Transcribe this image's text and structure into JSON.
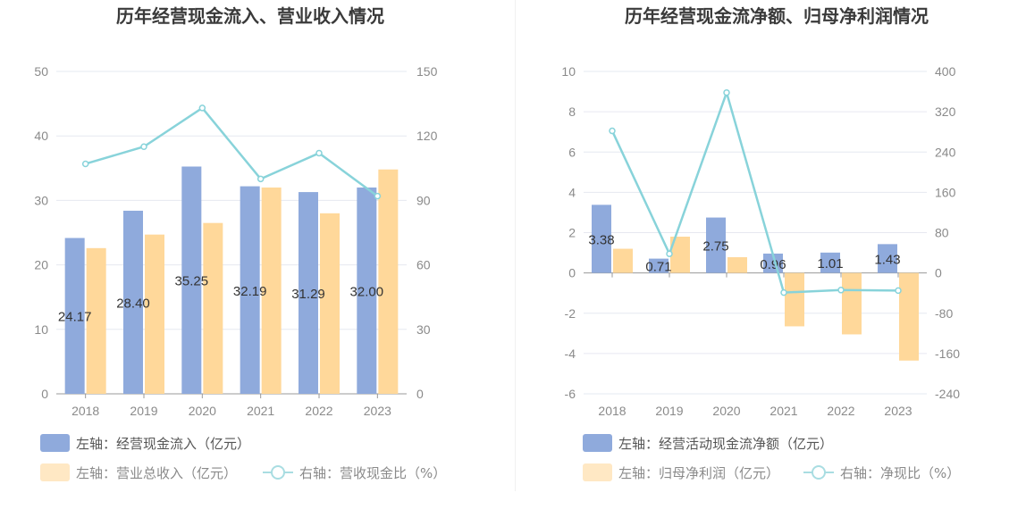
{
  "chart_data": [
    {
      "type": "bar",
      "title": "历年经营现金流入、营业收入情况",
      "categories": [
        "2018",
        "2019",
        "2020",
        "2021",
        "2022",
        "2023"
      ],
      "left_axis": {
        "ticks": [
          "0",
          "10",
          "20",
          "30",
          "40",
          "50"
        ],
        "ylim": [
          0,
          50
        ]
      },
      "right_axis": {
        "ticks": [
          "0",
          "30",
          "60",
          "90",
          "120",
          "150"
        ],
        "ylim": [
          0,
          150
        ]
      },
      "series": [
        {
          "name": "左轴：经营现金流入（亿元）",
          "type": "bar",
          "axis": "left",
          "color": "#8faadc",
          "values": [
            24.17,
            28.4,
            35.25,
            32.19,
            31.29,
            32.0
          ],
          "labels": [
            "24.17",
            "28.40",
            "35.25",
            "32.19",
            "31.29",
            "32.00"
          ]
        },
        {
          "name": "左轴：营业总收入（亿元）",
          "type": "bar",
          "axis": "left",
          "color": "#ffd89a",
          "values": [
            22.6,
            24.7,
            26.5,
            32.0,
            28.0,
            34.8
          ]
        },
        {
          "name": "右轴：营收现金比（%）",
          "type": "line",
          "axis": "right",
          "color": "#88d3da",
          "values": [
            107,
            115,
            133,
            100,
            112,
            92
          ]
        }
      ],
      "grid": true,
      "legend_position": "bottom-left"
    },
    {
      "type": "bar",
      "title": "历年经营现金流净额、归母净利润情况",
      "categories": [
        "2018",
        "2019",
        "2020",
        "2021",
        "2022",
        "2023"
      ],
      "left_axis": {
        "ticks": [
          "-6",
          "-4",
          "-2",
          "0",
          "2",
          "4",
          "6",
          "8",
          "10"
        ],
        "ylim": [
          -6,
          10
        ]
      },
      "right_axis": {
        "ticks": [
          "-240",
          "-160",
          "-80",
          "0",
          "80",
          "160",
          "240",
          "320",
          "400"
        ],
        "ylim": [
          -240,
          400
        ]
      },
      "series": [
        {
          "name": "左轴：经营活动现金流净额（亿元）",
          "type": "bar",
          "axis": "left",
          "color": "#8faadc",
          "values": [
            3.38,
            0.71,
            2.75,
            0.96,
            1.01,
            1.43
          ],
          "labels": [
            "3.38",
            "0.71",
            "2.75",
            "0.96",
            "1.01",
            "1.43"
          ]
        },
        {
          "name": "左轴：归母净利润（亿元）",
          "type": "bar",
          "axis": "left",
          "color": "#ffd89a",
          "values": [
            1.2,
            1.8,
            0.78,
            -2.65,
            -3.05,
            -4.35
          ]
        },
        {
          "name": "右轴：净现比（%）",
          "type": "line",
          "axis": "right",
          "color": "#88d3da",
          "values": [
            282,
            38,
            358,
            -39,
            -34,
            -35
          ]
        }
      ],
      "grid": true,
      "legend_position": "bottom-left"
    }
  ]
}
